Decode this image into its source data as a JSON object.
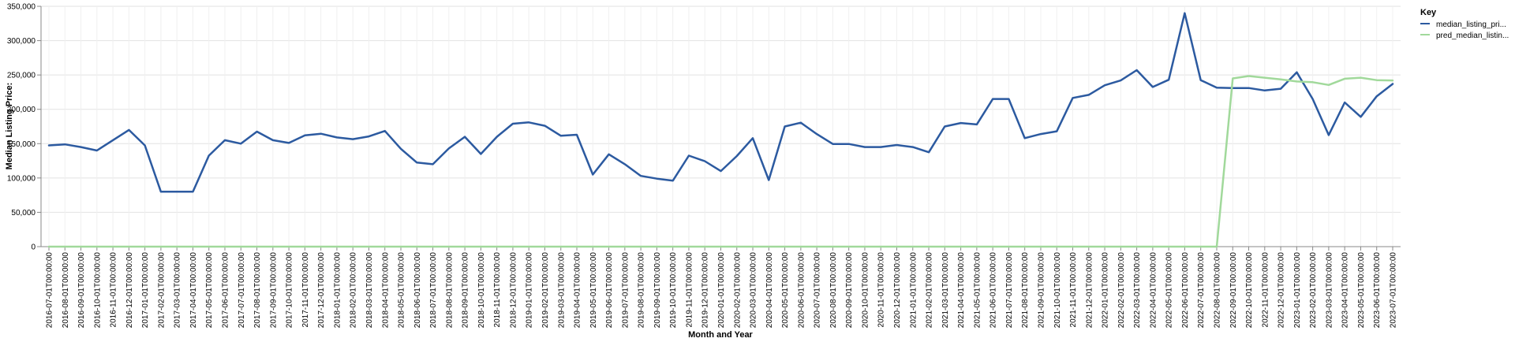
{
  "chart_data": {
    "type": "line",
    "xlabel": "Month and Year",
    "ylabel": "Median Listing Price:",
    "ylim": [
      0,
      350000
    ],
    "yticks": [
      "0",
      "50,000",
      "100,000",
      "150,000",
      "200,000",
      "250,000",
      "300,000",
      "350,000"
    ],
    "grid": true,
    "legend": {
      "title": "Key",
      "placement": "top-right",
      "entries": [
        "median_listing_pri...",
        "pred_median_listin..."
      ]
    },
    "categories": [
      "2016-07-01T00:00:00",
      "2016-08-01T00:00:00",
      "2016-09-01T00:00:00",
      "2016-10-01T00:00:00",
      "2016-11-01T00:00:00",
      "2016-12-01T00:00:00",
      "2017-01-01T00:00:00",
      "2017-02-01T00:00:00",
      "2017-03-01T00:00:00",
      "2017-04-01T00:00:00",
      "2017-05-01T00:00:00",
      "2017-06-01T00:00:00",
      "2017-07-01T00:00:00",
      "2017-08-01T00:00:00",
      "2017-09-01T00:00:00",
      "2017-10-01T00:00:00",
      "2017-11-01T00:00:00",
      "2017-12-01T00:00:00",
      "2018-01-01T00:00:00",
      "2018-02-01T00:00:00",
      "2018-03-01T00:00:00",
      "2018-04-01T00:00:00",
      "2018-05-01T00:00:00",
      "2018-06-01T00:00:00",
      "2018-07-01T00:00:00",
      "2018-08-01T00:00:00",
      "2018-09-01T00:00:00",
      "2018-10-01T00:00:00",
      "2018-11-01T00:00:00",
      "2018-12-01T00:00:00",
      "2019-01-01T00:00:00",
      "2019-02-01T00:00:00",
      "2019-03-01T00:00:00",
      "2019-04-01T00:00:00",
      "2019-05-01T00:00:00",
      "2019-06-01T00:00:00",
      "2019-07-01T00:00:00",
      "2019-08-01T00:00:00",
      "2019-09-01T00:00:00",
      "2019-10-01T00:00:00",
      "2019-11-01T00:00:00",
      "2019-12-01T00:00:00",
      "2020-01-01T00:00:00",
      "2020-02-01T00:00:00",
      "2020-03-01T00:00:00",
      "2020-04-01T00:00:00",
      "2020-05-01T00:00:00",
      "2020-06-01T00:00:00",
      "2020-07-01T00:00:00",
      "2020-08-01T00:00:00",
      "2020-09-01T00:00:00",
      "2020-10-01T00:00:00",
      "2020-11-01T00:00:00",
      "2020-12-01T00:00:00",
      "2021-01-01T00:00:00",
      "2021-02-01T00:00:00",
      "2021-03-01T00:00:00",
      "2021-04-01T00:00:00",
      "2021-05-01T00:00:00",
      "2021-06-01T00:00:00",
      "2021-07-01T00:00:00",
      "2021-08-01T00:00:00",
      "2021-09-01T00:00:00",
      "2021-10-01T00:00:00",
      "2021-11-01T00:00:00",
      "2021-12-01T00:00:00",
      "2022-01-01T00:00:00",
      "2022-02-01T00:00:00",
      "2022-03-01T00:00:00",
      "2022-04-01T00:00:00",
      "2022-05-01T00:00:00",
      "2022-06-01T00:00:00",
      "2022-07-01T00:00:00",
      "2022-08-01T00:00:00",
      "2022-09-01T00:00:00",
      "2022-10-01T00:00:00",
      "2022-11-01T00:00:00",
      "2022-12-01T00:00:00",
      "2023-01-01T00:00:00",
      "2023-02-01T00:00:00",
      "2023-03-01T00:00:00",
      "2023-04-01T00:00:00",
      "2023-05-01T00:00:00",
      "2023-06-01T00:00:00",
      "2023-07-01T00:00:00"
    ],
    "series": [
      {
        "name": "median_listing_pri...",
        "color": "#2c5aa0",
        "values": [
          147500,
          149000,
          145000,
          140000,
          155000,
          170000,
          147500,
          80000,
          80000,
          80000,
          132500,
          155000,
          150000,
          167500,
          155000,
          151000,
          162000,
          164500,
          159000,
          156500,
          160500,
          168500,
          142500,
          122500,
          120000,
          143000,
          160000,
          135000,
          160000,
          179000,
          181000,
          176000,
          161500,
          163000,
          105000,
          134500,
          120000,
          103000,
          99000,
          96000,
          132500,
          124500,
          110000,
          132000,
          158000,
          97000,
          175000,
          180500,
          164000,
          149500,
          149500,
          145000,
          145000,
          148000,
          145000,
          137500,
          175000,
          180000,
          178000,
          215000,
          215000,
          158000,
          164000,
          168000,
          216500,
          221000,
          235000,
          242000,
          257000,
          232500,
          243000,
          340000,
          242500,
          231500,
          231000,
          231000,
          227500,
          230000,
          254000,
          215000,
          162500,
          210000,
          189000,
          219000,
          237000
        ]
      },
      {
        "name": "pred_median_listin...",
        "color": "#a1d99b",
        "values": [
          0,
          0,
          0,
          0,
          0,
          0,
          0,
          0,
          0,
          0,
          0,
          0,
          0,
          0,
          0,
          0,
          0,
          0,
          0,
          0,
          0,
          0,
          0,
          0,
          0,
          0,
          0,
          0,
          0,
          0,
          0,
          0,
          0,
          0,
          0,
          0,
          0,
          0,
          0,
          0,
          0,
          0,
          0,
          0,
          0,
          0,
          0,
          0,
          0,
          0,
          0,
          0,
          0,
          0,
          0,
          0,
          0,
          0,
          0,
          0,
          0,
          0,
          0,
          0,
          0,
          0,
          0,
          0,
          0,
          0,
          0,
          0,
          0,
          0,
          245000,
          248500,
          246000,
          243500,
          240500,
          239500,
          235500,
          244500,
          246000,
          242500,
          242000
        ]
      }
    ]
  }
}
